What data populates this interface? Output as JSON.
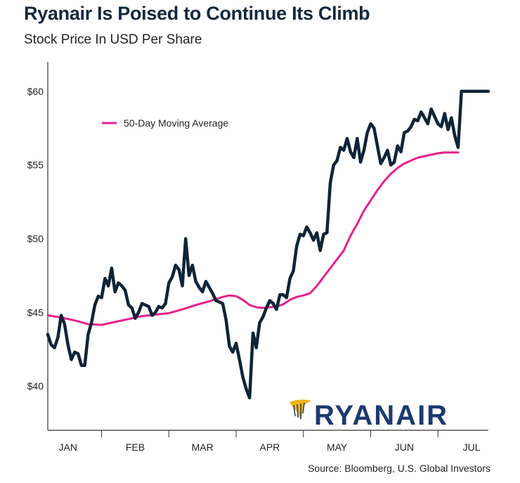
{
  "header": {
    "title": "Ryanair Is Poised to Continue Its Climb",
    "subtitle": "Stock Price In USD Per Share"
  },
  "footer": {
    "source": "Source: Bloomberg, U.S. Global Investors"
  },
  "logo": {
    "text": "RYANAIR",
    "icon": "harp-icon",
    "color": "#1b3b6f",
    "icon_color": "#f2b317"
  },
  "colors": {
    "price": "#0f2438",
    "moving_average": "#e8218c",
    "axis": "#333333"
  },
  "chart_data": {
    "type": "line",
    "title": "Ryanair Is Poised to Continue Its Climb",
    "subtitle": "Stock Price In USD Per Share",
    "ylim": [
      37,
      62
    ],
    "xlim": [
      0,
      131
    ],
    "y_ticks": [
      {
        "value": 60,
        "label": "$60"
      },
      {
        "value": 55,
        "label": "$55"
      },
      {
        "value": 50,
        "label": "$50"
      },
      {
        "value": 45,
        "label": "$45"
      },
      {
        "value": 40,
        "label": "$40"
      }
    ],
    "x_ticks": [
      {
        "value": 6,
        "label": "JAN"
      },
      {
        "value": 26,
        "label": "FEB"
      },
      {
        "value": 46,
        "label": "MAR"
      },
      {
        "value": 66,
        "label": "APR"
      },
      {
        "value": 86,
        "label": "MAY"
      },
      {
        "value": 106,
        "label": "JUN"
      },
      {
        "value": 126,
        "label": "JUL"
      }
    ],
    "x_separators": [
      16,
      36,
      56,
      76,
      96,
      116
    ],
    "grid": false,
    "legend": {
      "position": "top-left",
      "entries": [
        "50-Day Moving Average"
      ]
    },
    "series": [
      {
        "key": "price",
        "x": [
          0,
          1,
          2,
          3,
          4,
          5,
          6,
          7,
          8,
          9,
          10,
          11,
          12,
          13,
          14,
          15,
          16,
          17,
          18,
          19,
          20,
          21,
          22,
          23,
          24,
          25,
          26,
          27,
          28,
          29,
          30,
          31,
          32,
          33,
          34,
          35,
          36,
          37,
          38,
          39,
          40,
          41,
          42,
          43,
          44,
          45,
          46,
          47,
          48,
          49,
          50,
          51,
          52,
          53,
          54,
          55,
          56,
          57,
          58,
          59,
          60,
          61,
          62,
          63,
          64,
          65,
          66,
          67,
          68,
          69,
          70,
          71,
          72,
          73,
          74,
          75,
          76,
          77,
          78,
          79,
          80,
          81,
          82,
          83,
          84,
          85,
          86,
          87,
          88,
          89,
          90,
          91,
          92,
          93,
          94,
          95,
          96,
          97,
          98,
          99,
          100,
          101,
          102,
          103,
          104,
          105,
          106,
          107,
          108,
          109,
          110,
          111,
          112,
          113,
          114,
          115,
          116,
          117,
          118,
          119,
          120,
          121,
          122,
          123,
          124,
          125,
          126,
          127,
          128,
          129,
          130,
          131
        ],
        "values": [
          43.5,
          42.8,
          42.6,
          43.3,
          44.8,
          44.2,
          42.8,
          41.8,
          42.3,
          42.2,
          41.4,
          41.4,
          43.5,
          44.3,
          45.5,
          46.1,
          46.0,
          47.3,
          46.8,
          48.0,
          46.4,
          47.0,
          46.8,
          46.5,
          45.5,
          45.3,
          44.6,
          45.0,
          45.6,
          45.5,
          45.4,
          44.8,
          45.0,
          45.4,
          45.3,
          45.6,
          47.0,
          47.4,
          48.2,
          47.9,
          46.8,
          50.0,
          47.5,
          48.2,
          47.1,
          46.7,
          46.4,
          47.1,
          46.7,
          46.3,
          45.8,
          45.7,
          45.6,
          44.5,
          42.7,
          42.3,
          42.9,
          41.8,
          40.6,
          39.8,
          39.2,
          43.6,
          42.6,
          44.3,
          44.7,
          45.3,
          45.8,
          45.6,
          45.2,
          46.2,
          46.2,
          46.0,
          47.3,
          47.8,
          49.5,
          50.3,
          50.2,
          50.8,
          50.4,
          49.9,
          50.4,
          49.2,
          50.3,
          50.4,
          53.8,
          55.0,
          55.3,
          56.2,
          56.0,
          56.8,
          55.9,
          55.5,
          56.8,
          55.2,
          56.0,
          57.2,
          57.8,
          57.5,
          56.3,
          55.1,
          55.5,
          56.0,
          55.0,
          55.2,
          56.3,
          55.9,
          57.2,
          57.3,
          57.6,
          58.1,
          58.0,
          58.6,
          58.2,
          57.8,
          58.8,
          58.3,
          57.8,
          57.6,
          58.5,
          57.4,
          58.2,
          57.0,
          56.2,
          60.0,
          60.0,
          60.0,
          60.0,
          60.0,
          60.0,
          60.0,
          60.0,
          60.0
        ]
      },
      {
        "key": "moving_average",
        "name": "50-Day Moving Average",
        "x": [
          0,
          4,
          8,
          12,
          16,
          20,
          24,
          28,
          32,
          36,
          40,
          44,
          48,
          52,
          54,
          56,
          58,
          60,
          62,
          64,
          66,
          68,
          70,
          72,
          74,
          76,
          78,
          80,
          82,
          84,
          86,
          88,
          90,
          92,
          94,
          96,
          98,
          100,
          102,
          104,
          106,
          108,
          110,
          112,
          114,
          116,
          118,
          120,
          122
        ],
        "values": [
          44.8,
          44.65,
          44.45,
          44.2,
          44.15,
          44.35,
          44.55,
          44.75,
          44.85,
          44.95,
          45.2,
          45.5,
          45.75,
          46.05,
          46.15,
          46.1,
          45.85,
          45.5,
          45.35,
          45.3,
          45.35,
          45.4,
          45.55,
          45.85,
          46.05,
          46.15,
          46.3,
          46.8,
          47.4,
          48.0,
          48.6,
          49.2,
          50.2,
          51.0,
          51.9,
          52.6,
          53.3,
          53.9,
          54.4,
          54.8,
          55.1,
          55.3,
          55.5,
          55.6,
          55.7,
          55.8,
          55.85,
          55.85,
          55.85
        ]
      }
    ]
  }
}
